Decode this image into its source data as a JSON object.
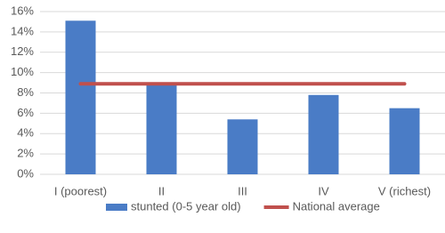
{
  "chart_data": {
    "type": "bar",
    "categories": [
      "I (poorest)",
      "II",
      "III",
      "IV",
      "V (richest)"
    ],
    "series": [
      {
        "name": "stunted (0-5 year old)",
        "color": "#4a7cc6",
        "type": "bar",
        "values": [
          15.1,
          9.0,
          5.4,
          7.8,
          6.5
        ]
      },
      {
        "name": "National average",
        "color": "#c0504d",
        "type": "line",
        "values": [
          8.9,
          8.9,
          8.9,
          8.9,
          8.9
        ]
      }
    ],
    "ylim": [
      0,
      16
    ],
    "yticks": [
      {
        "value": 0,
        "label": "0%"
      },
      {
        "value": 2,
        "label": "2%"
      },
      {
        "value": 4,
        "label": "4%"
      },
      {
        "value": 6,
        "label": "6%"
      },
      {
        "value": 8,
        "label": "8%"
      },
      {
        "value": 10,
        "label": "10%"
      },
      {
        "value": 12,
        "label": "12%"
      },
      {
        "value": 14,
        "label": "14%"
      },
      {
        "value": 16,
        "label": "16%"
      }
    ],
    "grid": true,
    "legend": "bottom"
  }
}
